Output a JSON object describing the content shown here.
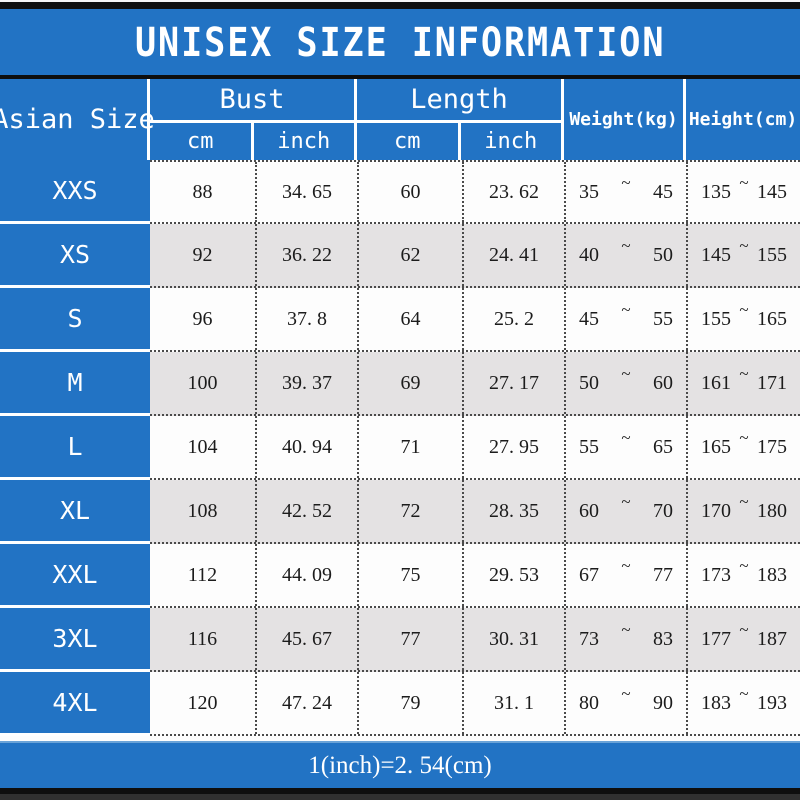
{
  "title": "UNISEX SIZE INFORMATION",
  "footer_note": "1(inch)=2. 54(cm)",
  "colors": {
    "banner_blue": "#2273c4",
    "header_text": "#ffffff",
    "row_white": "#fdfdfd",
    "row_gray": "#e4e2e3",
    "separator_black": "#0e0e0e",
    "dotted_line": "#4a4a4a"
  },
  "table": {
    "corner_header": "Asian Size",
    "range_separator": "~",
    "groups": [
      {
        "label": "Bust",
        "subs": [
          "cm",
          "inch"
        ]
      },
      {
        "label": "Length",
        "subs": [
          "cm",
          "inch"
        ]
      }
    ],
    "col_weight": "Weight(kg)",
    "col_height": "Height(cm)",
    "rows": [
      {
        "size": "XXS",
        "bust_cm": "88",
        "bust_inch": "34. 65",
        "length_cm": "60",
        "length_inch": "23. 62",
        "weight_min": "35",
        "weight_max": "45",
        "height_min": "135",
        "height_max": "145"
      },
      {
        "size": "XS",
        "bust_cm": "92",
        "bust_inch": "36. 22",
        "length_cm": "62",
        "length_inch": "24. 41",
        "weight_min": "40",
        "weight_max": "50",
        "height_min": "145",
        "height_max": "155"
      },
      {
        "size": "S",
        "bust_cm": "96",
        "bust_inch": "37. 8",
        "length_cm": "64",
        "length_inch": "25. 2",
        "weight_min": "45",
        "weight_max": "55",
        "height_min": "155",
        "height_max": "165"
      },
      {
        "size": "M",
        "bust_cm": "100",
        "bust_inch": "39. 37",
        "length_cm": "69",
        "length_inch": "27. 17",
        "weight_min": "50",
        "weight_max": "60",
        "height_min": "161",
        "height_max": "171"
      },
      {
        "size": "L",
        "bust_cm": "104",
        "bust_inch": "40. 94",
        "length_cm": "71",
        "length_inch": "27. 95",
        "weight_min": "55",
        "weight_max": "65",
        "height_min": "165",
        "height_max": "175"
      },
      {
        "size": "XL",
        "bust_cm": "108",
        "bust_inch": "42. 52",
        "length_cm": "72",
        "length_inch": "28. 35",
        "weight_min": "60",
        "weight_max": "70",
        "height_min": "170",
        "height_max": "180"
      },
      {
        "size": "XXL",
        "bust_cm": "112",
        "bust_inch": "44. 09",
        "length_cm": "75",
        "length_inch": "29. 53",
        "weight_min": "67",
        "weight_max": "77",
        "height_min": "173",
        "height_max": "183"
      },
      {
        "size": "3XL",
        "bust_cm": "116",
        "bust_inch": "45. 67",
        "length_cm": "77",
        "length_inch": "30. 31",
        "weight_min": "73",
        "weight_max": "83",
        "height_min": "177",
        "height_max": "187"
      },
      {
        "size": "4XL",
        "bust_cm": "120",
        "bust_inch": "47. 24",
        "length_cm": "79",
        "length_inch": "31. 1",
        "weight_min": "80",
        "weight_max": "90",
        "height_min": "183",
        "height_max": "193"
      }
    ]
  },
  "chart_data": {
    "type": "table",
    "title": "UNISEX SIZE INFORMATION",
    "columns": [
      "Asian Size",
      "Bust cm",
      "Bust inch",
      "Length cm",
      "Length inch",
      "Weight(kg)",
      "Height(cm)"
    ],
    "rows": [
      [
        "XXS",
        88,
        34.65,
        60,
        23.62,
        "35~45",
        "135~145"
      ],
      [
        "XS",
        92,
        36.22,
        62,
        24.41,
        "40~50",
        "145~155"
      ],
      [
        "S",
        96,
        37.8,
        64,
        25.2,
        "45~55",
        "155~165"
      ],
      [
        "M",
        100,
        39.37,
        69,
        27.17,
        "50~60",
        "161~171"
      ],
      [
        "L",
        104,
        40.94,
        71,
        27.95,
        "55~65",
        "165~175"
      ],
      [
        "XL",
        108,
        42.52,
        72,
        28.35,
        "60~70",
        "170~180"
      ],
      [
        "XXL",
        112,
        44.09,
        75,
        29.53,
        "67~77",
        "173~183"
      ],
      [
        "3XL",
        116,
        45.67,
        77,
        30.31,
        "73~83",
        "177~187"
      ],
      [
        "4XL",
        120,
        47.24,
        79,
        31.1,
        "80~90",
        "183~193"
      ]
    ],
    "note": "1(inch)=2.54(cm)",
    "layout": "alternating row shading white/gray, blue header band, dotted cell separators"
  }
}
